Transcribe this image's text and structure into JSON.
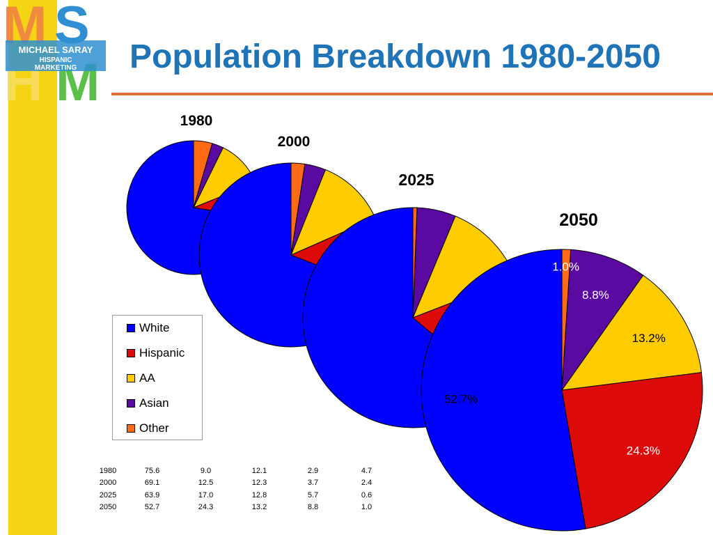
{
  "title": "Population Breakdown 1980-2050",
  "logo": {
    "big_letters": [
      "M",
      "S",
      "H",
      "M"
    ],
    "line1": "MICHAEL SARAY",
    "line2": "HISPANIC",
    "line3": "MARKETING",
    "colors": {
      "orange": "#f08a3e",
      "blue": "#2f8fd0",
      "yellow": "#f7dc5a",
      "green": "#5bbf4a"
    }
  },
  "colors": {
    "title": "#1f73b7",
    "rule": "#e0703a",
    "side_bar": "#f5d416"
  },
  "chart_data": {
    "type": "pie",
    "categories": [
      "White",
      "Hispanic",
      "AA",
      "Asian",
      "Other"
    ],
    "colors": [
      "#0000ff",
      "#dd0a0a",
      "#ffcc00",
      "#5a0aa0",
      "#ff6a14"
    ],
    "series": [
      {
        "name": "1980",
        "values": [
          75.6,
          9.0,
          12.1,
          2.9,
          4.7
        ]
      },
      {
        "name": "2000",
        "values": [
          69.1,
          12.5,
          12.3,
          3.7,
          2.4
        ]
      },
      {
        "name": "2025",
        "values": [
          63.9,
          17.0,
          12.8,
          5.7,
          0.6
        ]
      },
      {
        "name": "2050",
        "values": [
          52.7,
          24.3,
          13.2,
          8.8,
          1.0
        ]
      }
    ],
    "data_labels": [
      "52.7%",
      "24.3%",
      "13.2%",
      "8.8%",
      "1.0%"
    ],
    "legend_placement": "center-left",
    "table": [
      [
        "1980",
        "75.6",
        "9.0",
        "12.1",
        "2.9",
        "4.7"
      ],
      [
        "2000",
        "69.1",
        "12.5",
        "12.3",
        "3.7",
        "2.4"
      ],
      [
        "2025",
        "63.9",
        "17.0",
        "12.8",
        "5.7",
        "0.6"
      ],
      [
        "2050",
        "52.7",
        "24.3",
        "13.2",
        "8.8",
        "1.0"
      ]
    ]
  }
}
